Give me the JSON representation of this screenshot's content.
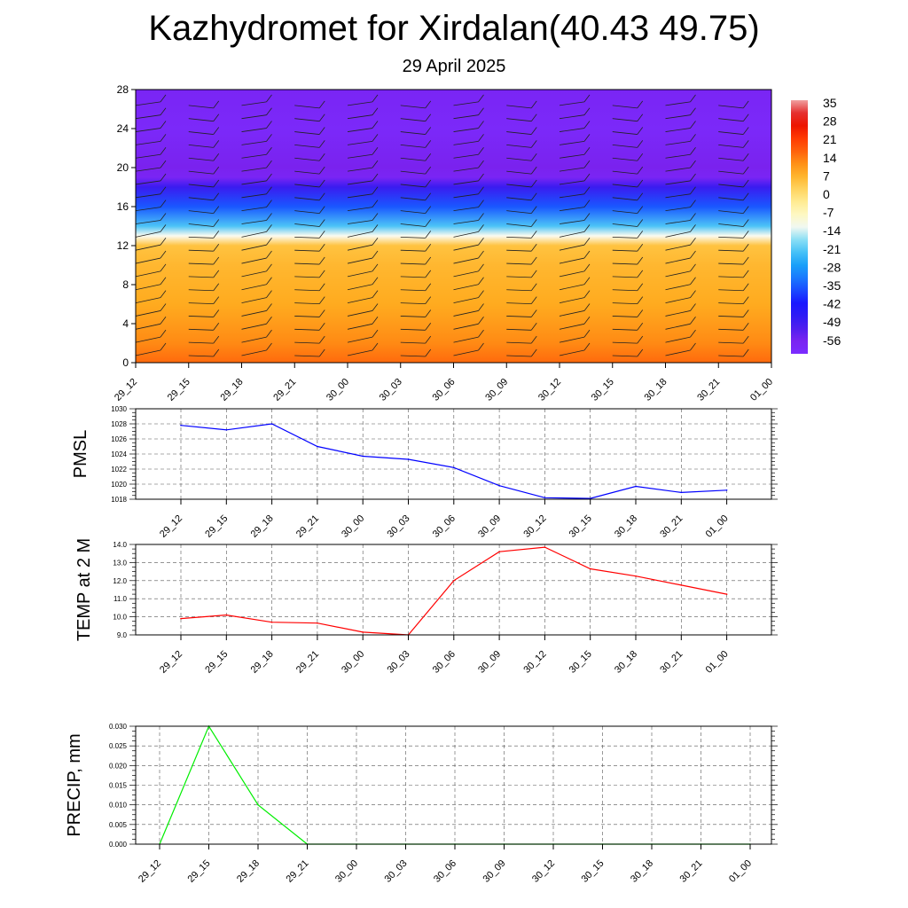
{
  "header": {
    "title": "Kazhydromet for Xirdalan(40.43 49.75)",
    "subtitle": "29 April 2025"
  },
  "time_labels": [
    "29_12",
    "29_15",
    "29_18",
    "29_21",
    "30_00",
    "30_03",
    "30_06",
    "30_09",
    "30_12",
    "30_15",
    "30_18",
    "30_21",
    "01_00"
  ],
  "chart_data": [
    {
      "type": "heatmap",
      "title": "Kazhydromet for Xirdalan(40.43 49.75)",
      "subtitle": "29 April 2025",
      "x": [
        "29_12",
        "29_15",
        "29_18",
        "29_21",
        "30_00",
        "30_03",
        "30_06",
        "30_09",
        "30_12",
        "30_15",
        "30_18",
        "30_21",
        "01_00"
      ],
      "xlabel": "",
      "ylabel": "",
      "ylim": [
        0,
        28
      ],
      "yticks": [
        0,
        4,
        8,
        12,
        16,
        20,
        24,
        28
      ],
      "colorbar_ticks": [
        "35",
        "28",
        "21",
        "14",
        "7",
        "0",
        "-7",
        "-14",
        "-21",
        "-28",
        "-35",
        "-42",
        "-49",
        "-56"
      ],
      "colorbar_position": "right",
      "temperature_profile": [
        {
          "level": 0,
          "value": 14
        },
        {
          "level": 2,
          "value": 11
        },
        {
          "level": 4,
          "value": 9
        },
        {
          "level": 6,
          "value": 7
        },
        {
          "level": 8,
          "value": 6
        },
        {
          "level": 10,
          "value": 5
        },
        {
          "level": 12,
          "value": 3
        },
        {
          "level": 13,
          "value": -14
        },
        {
          "level": 14,
          "value": -24
        },
        {
          "level": 16,
          "value": -38
        },
        {
          "level": 18,
          "value": -52
        },
        {
          "level": 19,
          "value": -60
        },
        {
          "level": 20,
          "value": -58
        },
        {
          "level": 24,
          "value": -62
        },
        {
          "level": 28,
          "value": -60
        }
      ],
      "overlay": "wind barbs"
    },
    {
      "type": "line",
      "ylabel": "PMSL",
      "x": [
        "29_12",
        "29_15",
        "29_18",
        "29_21",
        "30_00",
        "30_03",
        "30_06",
        "30_09",
        "30_12",
        "30_15",
        "30_18",
        "30_21",
        "01_00"
      ],
      "ylim": [
        1018,
        1030
      ],
      "yticks": [
        "1018",
        "1020",
        "1022",
        "1024",
        "1026",
        "1028",
        "1030"
      ],
      "grid": true,
      "color": "#0000ff",
      "values": [
        1027.8,
        1027.2,
        1028.0,
        1025.0,
        1023.7,
        1023.3,
        1022.2,
        1019.8,
        1018.2,
        1018.1,
        1019.7,
        1018.9,
        1019.2
      ]
    },
    {
      "type": "line",
      "ylabel": "TEMP at 2 M",
      "x": [
        "29_12",
        "29_15",
        "29_18",
        "29_21",
        "30_00",
        "30_03",
        "30_06",
        "30_09",
        "30_12",
        "30_15",
        "30_18",
        "30_21",
        "01_00"
      ],
      "ylim": [
        9,
        14
      ],
      "yticks": [
        "9.0",
        "10.0",
        "11.0",
        "12.0",
        "13.0",
        "14.0"
      ],
      "grid": true,
      "color": "#ff0000",
      "values": [
        9.9,
        10.1,
        9.7,
        9.65,
        9.15,
        9.0,
        12.0,
        13.6,
        13.85,
        12.65,
        12.25,
        11.75,
        11.25
      ]
    },
    {
      "type": "bar",
      "ylabel": "PRECIP, mm",
      "x": [
        "29_12",
        "29_15",
        "29_18",
        "29_21",
        "30_00",
        "30_03",
        "30_06",
        "30_09",
        "30_12",
        "30_15",
        "30_18",
        "30_21",
        "01_00"
      ],
      "ylim": [
        0,
        0.03
      ],
      "yticks": [
        "0.000",
        "0.005",
        "0.010",
        "0.015",
        "0.020",
        "0.025",
        "0.030"
      ],
      "grid": true,
      "color": "#00ee00",
      "values": [
        0,
        0.03,
        0.01,
        0,
        0,
        0,
        0,
        0,
        0,
        0,
        0,
        0,
        0
      ]
    }
  ]
}
